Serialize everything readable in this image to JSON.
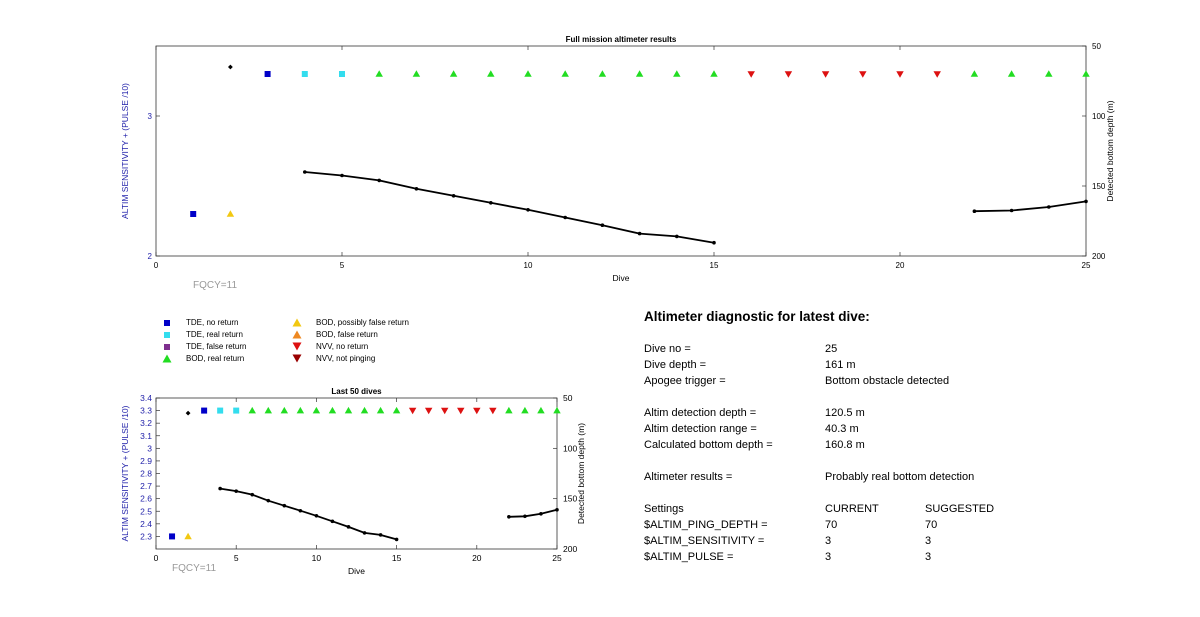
{
  "colors": {
    "tde_no_return": "#0000c8",
    "tde_real_return": "#33ddee",
    "tde_false_return": "#7e2f8e",
    "bod_real_return": "#22dd22",
    "bod_possibly_false": "#f2c811",
    "bod_false_return": "#ee8822",
    "nvv_no_return": "#dd1111",
    "nvv_not_pinging": "#990000",
    "left_axis": "#2222aa",
    "depth_line": "#000000"
  },
  "chart_data": [
    {
      "id": "full_mission",
      "type": "scatter",
      "title": "Full mission altimeter results",
      "xlabel": "Dive",
      "ylabel": "ALTIM SENSITIVITY + (PULSE /10)",
      "y2label": "Detected bottom depth (m)",
      "xlim": [
        0,
        25
      ],
      "ylim": [
        2,
        3.5
      ],
      "y2lim": [
        50,
        200
      ],
      "y2_reversed": true,
      "xticks": [
        0,
        5,
        10,
        15,
        20,
        25
      ],
      "yticks": [
        2,
        3
      ],
      "y2ticks": [
        50,
        100,
        150,
        200
      ],
      "annotation": "FQCY=11",
      "series": [
        {
          "name": "TDE, no return",
          "marker": "square",
          "color_key": "tde_no_return",
          "points": [
            [
              1,
              2.3
            ],
            [
              3,
              3.3
            ]
          ]
        },
        {
          "name": "TDE, real return",
          "marker": "square",
          "color_key": "tde_real_return",
          "points": [
            [
              4,
              3.3
            ],
            [
              5,
              3.3
            ]
          ]
        },
        {
          "name": "BOD, real return",
          "marker": "triangle-up",
          "color_key": "bod_real_return",
          "points": [
            [
              6,
              3.3
            ],
            [
              7,
              3.3
            ],
            [
              8,
              3.3
            ],
            [
              9,
              3.3
            ],
            [
              10,
              3.3
            ],
            [
              11,
              3.3
            ],
            [
              12,
              3.3
            ],
            [
              13,
              3.3
            ],
            [
              14,
              3.3
            ],
            [
              15,
              3.3
            ],
            [
              22,
              3.3
            ],
            [
              23,
              3.3
            ],
            [
              24,
              3.3
            ],
            [
              25,
              3.3
            ]
          ]
        },
        {
          "name": "BOD, possibly false return",
          "marker": "triangle-up",
          "color_key": "bod_possibly_false",
          "points": [
            [
              2,
              2.3
            ]
          ]
        },
        {
          "name": "NVV, no return",
          "marker": "triangle-down",
          "color_key": "nvv_no_return",
          "points": [
            [
              16,
              3.3
            ],
            [
              17,
              3.3
            ],
            [
              18,
              3.3
            ],
            [
              19,
              3.3
            ],
            [
              20,
              3.3
            ],
            [
              21,
              3.3
            ]
          ]
        }
      ],
      "extra_point": {
        "marker": "diamond",
        "color_key": "depth_line",
        "x": 2,
        "y": 3.35
      },
      "depth_segments": [
        [
          [
            4,
            140
          ],
          [
            5,
            142.5
          ],
          [
            6,
            146
          ],
          [
            7,
            152
          ],
          [
            8,
            157
          ],
          [
            9,
            162
          ],
          [
            10,
            167
          ],
          [
            11,
            172.5
          ],
          [
            12,
            178
          ],
          [
            13,
            184
          ],
          [
            14,
            186
          ],
          [
            15,
            190.5
          ]
        ],
        [
          [
            22,
            168
          ],
          [
            23,
            167.5
          ],
          [
            24,
            165
          ],
          [
            25,
            161
          ]
        ]
      ]
    },
    {
      "id": "last_50",
      "type": "scatter",
      "title": "Last 50 dives",
      "xlabel": "Dive",
      "ylabel": "ALTIM SENSITIVITY + (PULSE /10)",
      "y2label": "Detected bottom depth (m)",
      "xlim": [
        0,
        25
      ],
      "ylim": [
        2.2,
        3.4
      ],
      "y2lim": [
        50,
        200
      ],
      "y2_reversed": true,
      "xticks": [
        0,
        5,
        10,
        15,
        20,
        25
      ],
      "yticks": [
        2.3,
        2.4,
        2.5,
        2.6,
        2.7,
        2.8,
        2.9,
        3,
        3.1,
        3.2,
        3.3,
        3.4
      ],
      "y2ticks": [
        50,
        100,
        150,
        200
      ],
      "annotation": "FQCY=11",
      "series": [
        {
          "name": "TDE, no return",
          "marker": "square",
          "color_key": "tde_no_return",
          "points": [
            [
              1,
              2.3
            ],
            [
              3,
              3.3
            ]
          ]
        },
        {
          "name": "TDE, real return",
          "marker": "square",
          "color_key": "tde_real_return",
          "points": [
            [
              4,
              3.3
            ],
            [
              5,
              3.3
            ]
          ]
        },
        {
          "name": "BOD, real return",
          "marker": "triangle-up",
          "color_key": "bod_real_return",
          "points": [
            [
              6,
              3.3
            ],
            [
              7,
              3.3
            ],
            [
              8,
              3.3
            ],
            [
              9,
              3.3
            ],
            [
              10,
              3.3
            ],
            [
              11,
              3.3
            ],
            [
              12,
              3.3
            ],
            [
              13,
              3.3
            ],
            [
              14,
              3.3
            ],
            [
              15,
              3.3
            ],
            [
              22,
              3.3
            ],
            [
              23,
              3.3
            ],
            [
              24,
              3.3
            ],
            [
              25,
              3.3
            ]
          ]
        },
        {
          "name": "BOD, possibly false return",
          "marker": "triangle-up",
          "color_key": "bod_possibly_false",
          "points": [
            [
              2,
              2.3
            ]
          ]
        },
        {
          "name": "NVV, no return",
          "marker": "triangle-down",
          "color_key": "nvv_no_return",
          "points": [
            [
              16,
              3.3
            ],
            [
              17,
              3.3
            ],
            [
              18,
              3.3
            ],
            [
              19,
              3.3
            ],
            [
              20,
              3.3
            ],
            [
              21,
              3.3
            ]
          ]
        }
      ],
      "extra_point": {
        "marker": "diamond",
        "color_key": "depth_line",
        "x": 2,
        "y": 3.28
      },
      "depth_segments": [
        [
          [
            4,
            140
          ],
          [
            5,
            142.5
          ],
          [
            6,
            146
          ],
          [
            7,
            152
          ],
          [
            8,
            157
          ],
          [
            9,
            162
          ],
          [
            10,
            167
          ],
          [
            11,
            172.5
          ],
          [
            12,
            178
          ],
          [
            13,
            184
          ],
          [
            14,
            186
          ],
          [
            15,
            190.5
          ]
        ],
        [
          [
            22,
            168
          ],
          [
            23,
            167.5
          ],
          [
            24,
            165
          ],
          [
            25,
            161
          ]
        ]
      ]
    }
  ],
  "legend": {
    "items": [
      {
        "label": "TDE, no return",
        "marker": "square",
        "color_key": "tde_no_return"
      },
      {
        "label": "TDE, real return",
        "marker": "square",
        "color_key": "tde_real_return"
      },
      {
        "label": "TDE, false return",
        "marker": "square",
        "color_key": "tde_false_return"
      },
      {
        "label": "BOD, real return",
        "marker": "triangle-up",
        "color_key": "bod_real_return"
      },
      {
        "label": "BOD, possibly false return",
        "marker": "triangle-up",
        "color_key": "bod_possibly_false"
      },
      {
        "label": "BOD, false return",
        "marker": "triangle-up",
        "color_key": "bod_false_return"
      },
      {
        "label": "NVV, no return",
        "marker": "triangle-down",
        "color_key": "nvv_no_return"
      },
      {
        "label": "NVV, not pinging",
        "marker": "triangle-down",
        "color_key": "nvv_not_pinging"
      }
    ]
  },
  "diagnostic": {
    "title": "Altimeter diagnostic for latest dive:",
    "dive_no": {
      "label": "Dive no =",
      "value": "25"
    },
    "dive_depth": {
      "label": "Dive depth =",
      "value": "161 m"
    },
    "apogee_trigger": {
      "label": "Apogee trigger =",
      "value": "Bottom obstacle detected"
    },
    "altim_detection_depth": {
      "label": "Altim detection depth =",
      "value": "120.5 m"
    },
    "altim_detection_range": {
      "label": "Altim detection range =",
      "value": "40.3 m"
    },
    "calculated_bottom_depth": {
      "label": "Calculated bottom depth =",
      "value": "160.8 m"
    },
    "altimeter_results": {
      "label": "Altimeter results =",
      "value": "Probably real bottom detection"
    },
    "settings_header": {
      "label": "Settings",
      "current": "CURRENT",
      "suggested": "SUGGESTED"
    },
    "ping_depth": {
      "label": "$ALTIM_PING_DEPTH =",
      "current": "70",
      "suggested": "70"
    },
    "sensitivity": {
      "label": "$ALTIM_SENSITIVITY =",
      "current": "3",
      "suggested": "3"
    },
    "pulse": {
      "label": "$ALTIM_PULSE =",
      "current": "3",
      "suggested": "3"
    }
  }
}
